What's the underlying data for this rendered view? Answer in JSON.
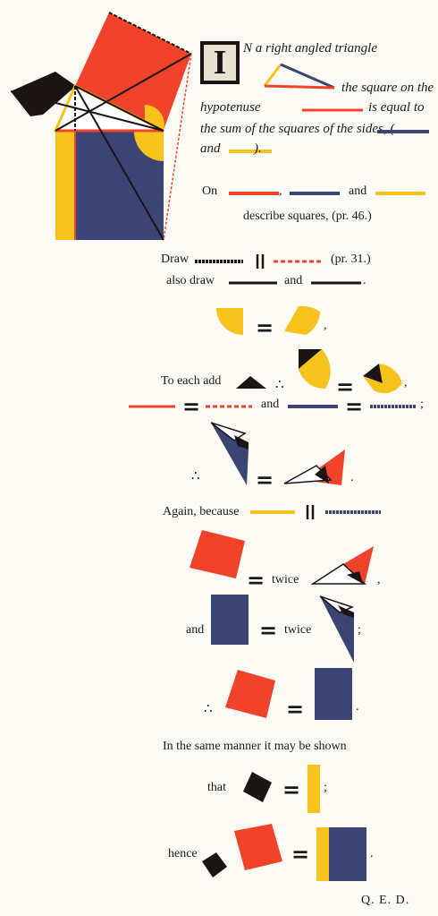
{
  "colors": {
    "red": "#f0432a",
    "blue": "#3b4472",
    "yellow": "#f6c21b",
    "black": "#1a1414",
    "paper": "#fdfbf6"
  },
  "intro": {
    "initial": "I",
    "line1": "N a right angled triangle",
    "line2": "the square on the",
    "line3": "hypotenuse",
    "line4": "is equal to",
    "line5": "the sum of the squares of the sides, (",
    "line6a": "and",
    "line6b": ")."
  },
  "on_line": {
    "on": "On",
    "comma": ",",
    "and": "and"
  },
  "describe": "describe squares, (pr. 46.)",
  "draw_line": {
    "draw": "Draw",
    "ref": "(pr. 31.)"
  },
  "also_line": {
    "also": "also draw",
    "and": "and",
    "period": "."
  },
  "step1": {
    "comma": ","
  },
  "step2": {
    "to_each": "To each add",
    "therefore": "∴",
    "comma": ","
  },
  "step3": {
    "and": "and",
    "semicolon": ";"
  },
  "step4": {
    "therefore": "∴",
    "period": "."
  },
  "step5": {
    "again": "Again, because"
  },
  "step6": {
    "twice": "twice",
    "comma": ","
  },
  "step7": {
    "and": "and",
    "twice": "twice",
    "semicolon": ";"
  },
  "step8": {
    "therefore": "∴",
    "period": "."
  },
  "step9": "In the same manner it may be shown",
  "step10": {
    "that": "that",
    "semicolon": ";"
  },
  "step11": {
    "hence": "hence",
    "period": "."
  },
  "qed": "Q. E. D."
}
